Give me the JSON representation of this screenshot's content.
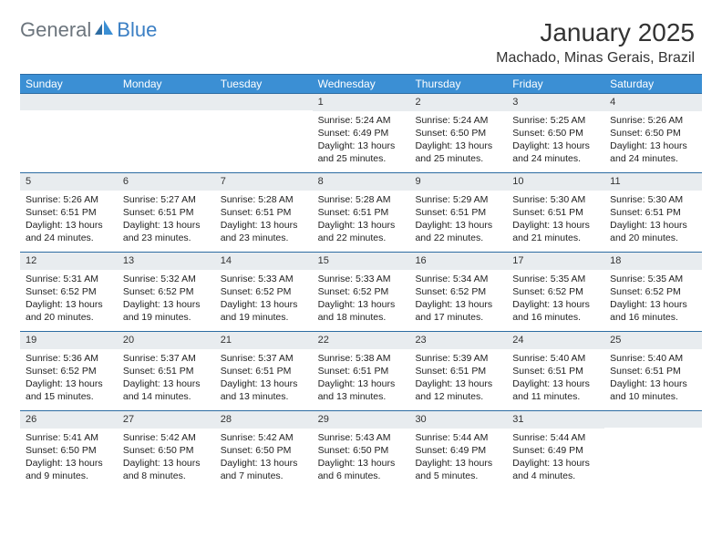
{
  "logo": {
    "text1": "General",
    "text2": "Blue"
  },
  "title": "January 2025",
  "location": "Machado, Minas Gerais, Brazil",
  "weekdays": [
    "Sunday",
    "Monday",
    "Tuesday",
    "Wednesday",
    "Thursday",
    "Friday",
    "Saturday"
  ],
  "colors": {
    "header_bar": "#3b8fd4",
    "border": "#2d6ca2",
    "daynum_bg": "#e8ecef",
    "logo_gray": "#6c757d",
    "logo_blue": "#3b7fc4"
  },
  "weeks": [
    [
      null,
      null,
      null,
      {
        "n": "1",
        "sr": "5:24 AM",
        "ss": "6:49 PM",
        "dl": "13 hours and 25 minutes."
      },
      {
        "n": "2",
        "sr": "5:24 AM",
        "ss": "6:50 PM",
        "dl": "13 hours and 25 minutes."
      },
      {
        "n": "3",
        "sr": "5:25 AM",
        "ss": "6:50 PM",
        "dl": "13 hours and 24 minutes."
      },
      {
        "n": "4",
        "sr": "5:26 AM",
        "ss": "6:50 PM",
        "dl": "13 hours and 24 minutes."
      }
    ],
    [
      {
        "n": "5",
        "sr": "5:26 AM",
        "ss": "6:51 PM",
        "dl": "13 hours and 24 minutes."
      },
      {
        "n": "6",
        "sr": "5:27 AM",
        "ss": "6:51 PM",
        "dl": "13 hours and 23 minutes."
      },
      {
        "n": "7",
        "sr": "5:28 AM",
        "ss": "6:51 PM",
        "dl": "13 hours and 23 minutes."
      },
      {
        "n": "8",
        "sr": "5:28 AM",
        "ss": "6:51 PM",
        "dl": "13 hours and 22 minutes."
      },
      {
        "n": "9",
        "sr": "5:29 AM",
        "ss": "6:51 PM",
        "dl": "13 hours and 22 minutes."
      },
      {
        "n": "10",
        "sr": "5:30 AM",
        "ss": "6:51 PM",
        "dl": "13 hours and 21 minutes."
      },
      {
        "n": "11",
        "sr": "5:30 AM",
        "ss": "6:51 PM",
        "dl": "13 hours and 20 minutes."
      }
    ],
    [
      {
        "n": "12",
        "sr": "5:31 AM",
        "ss": "6:52 PM",
        "dl": "13 hours and 20 minutes."
      },
      {
        "n": "13",
        "sr": "5:32 AM",
        "ss": "6:52 PM",
        "dl": "13 hours and 19 minutes."
      },
      {
        "n": "14",
        "sr": "5:33 AM",
        "ss": "6:52 PM",
        "dl": "13 hours and 19 minutes."
      },
      {
        "n": "15",
        "sr": "5:33 AM",
        "ss": "6:52 PM",
        "dl": "13 hours and 18 minutes."
      },
      {
        "n": "16",
        "sr": "5:34 AM",
        "ss": "6:52 PM",
        "dl": "13 hours and 17 minutes."
      },
      {
        "n": "17",
        "sr": "5:35 AM",
        "ss": "6:52 PM",
        "dl": "13 hours and 16 minutes."
      },
      {
        "n": "18",
        "sr": "5:35 AM",
        "ss": "6:52 PM",
        "dl": "13 hours and 16 minutes."
      }
    ],
    [
      {
        "n": "19",
        "sr": "5:36 AM",
        "ss": "6:52 PM",
        "dl": "13 hours and 15 minutes."
      },
      {
        "n": "20",
        "sr": "5:37 AM",
        "ss": "6:51 PM",
        "dl": "13 hours and 14 minutes."
      },
      {
        "n": "21",
        "sr": "5:37 AM",
        "ss": "6:51 PM",
        "dl": "13 hours and 13 minutes."
      },
      {
        "n": "22",
        "sr": "5:38 AM",
        "ss": "6:51 PM",
        "dl": "13 hours and 13 minutes."
      },
      {
        "n": "23",
        "sr": "5:39 AM",
        "ss": "6:51 PM",
        "dl": "13 hours and 12 minutes."
      },
      {
        "n": "24",
        "sr": "5:40 AM",
        "ss": "6:51 PM",
        "dl": "13 hours and 11 minutes."
      },
      {
        "n": "25",
        "sr": "5:40 AM",
        "ss": "6:51 PM",
        "dl": "13 hours and 10 minutes."
      }
    ],
    [
      {
        "n": "26",
        "sr": "5:41 AM",
        "ss": "6:50 PM",
        "dl": "13 hours and 9 minutes."
      },
      {
        "n": "27",
        "sr": "5:42 AM",
        "ss": "6:50 PM",
        "dl": "13 hours and 8 minutes."
      },
      {
        "n": "28",
        "sr": "5:42 AM",
        "ss": "6:50 PM",
        "dl": "13 hours and 7 minutes."
      },
      {
        "n": "29",
        "sr": "5:43 AM",
        "ss": "6:50 PM",
        "dl": "13 hours and 6 minutes."
      },
      {
        "n": "30",
        "sr": "5:44 AM",
        "ss": "6:49 PM",
        "dl": "13 hours and 5 minutes."
      },
      {
        "n": "31",
        "sr": "5:44 AM",
        "ss": "6:49 PM",
        "dl": "13 hours and 4 minutes."
      },
      null
    ]
  ],
  "labels": {
    "sunrise": "Sunrise: ",
    "sunset": "Sunset: ",
    "daylight": "Daylight: "
  }
}
